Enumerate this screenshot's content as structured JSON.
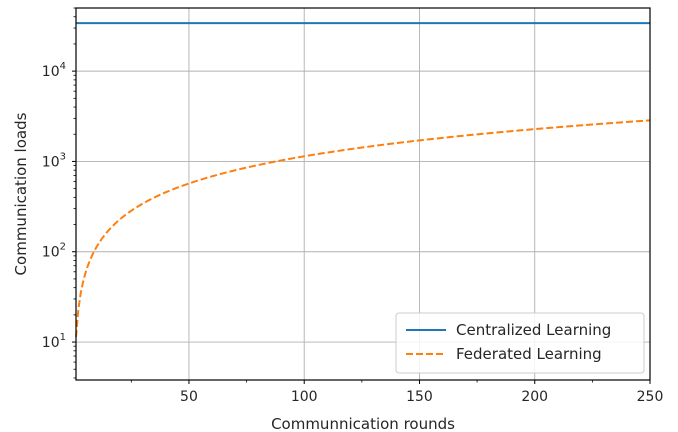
{
  "chart_data": {
    "type": "line",
    "xlabel": "Communnication rounds",
    "ylabel": "Communication loads",
    "xlim": [
      1,
      250
    ],
    "ylim": [
      3.8,
      50000
    ],
    "yscale": "log",
    "grid": true,
    "legend_position": "bottom-right",
    "x_ticks": [
      50,
      100,
      150,
      200,
      250
    ],
    "y_ticks": [
      {
        "value": 10,
        "base": "10",
        "exp": "1"
      },
      {
        "value": 100,
        "base": "10",
        "exp": "2"
      },
      {
        "value": 1000,
        "base": "10",
        "exp": "3"
      },
      {
        "value": 10000,
        "base": "10",
        "exp": "4"
      }
    ],
    "series": [
      {
        "name": "Centralized Learning",
        "color": "#1f77b4",
        "style": "solid",
        "x": [
          1,
          250
        ],
        "y": [
          34000,
          34000
        ]
      },
      {
        "name": "Federated Learning",
        "color": "#ff7f0e",
        "style": "dashed",
        "x": [
          1,
          2,
          3,
          5,
          8,
          10,
          15,
          20,
          30,
          40,
          50,
          60,
          75,
          100,
          125,
          150,
          175,
          200,
          225,
          250
        ],
        "y": [
          11.4,
          22.7,
          34.1,
          56.8,
          90.9,
          114,
          170,
          227,
          341,
          454,
          568,
          682,
          852,
          1136,
          1420,
          1704,
          1988,
          2272,
          2556,
          2840
        ]
      }
    ]
  }
}
